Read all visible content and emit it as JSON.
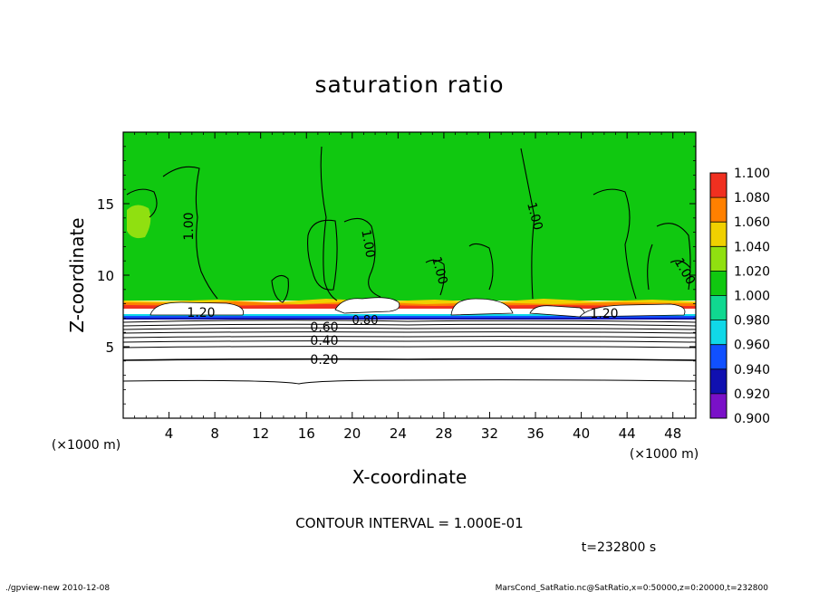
{
  "chart_data": {
    "type": "heatmap",
    "title": "saturation ratio",
    "xlabel": "X-coordinate",
    "ylabel": "Z-coordinate",
    "x_unit": "(×1000 m)",
    "z_unit": "(×1000 m)",
    "xlim": [
      0,
      50
    ],
    "ylim": [
      0,
      20
    ],
    "x_ticks": [
      4,
      8,
      12,
      16,
      20,
      24,
      28,
      32,
      36,
      40,
      44,
      48
    ],
    "y_ticks": [
      5,
      10,
      15
    ],
    "colorbar": {
      "levels": [
        0.9,
        0.92,
        0.94,
        0.96,
        0.98,
        1.0,
        1.02,
        1.04,
        1.06,
        1.08,
        1.1
      ],
      "labels": [
        "0.900",
        "0.920",
        "0.940",
        "0.960",
        "0.980",
        "1.000",
        "1.020",
        "1.040",
        "1.060",
        "1.080",
        "1.100"
      ],
      "colors": [
        "#7a10c8",
        "#1010b0",
        "#1050ff",
        "#10d8e8",
        "#10d890",
        "#10c810",
        "#90e010",
        "#f0d000",
        "#ff8000",
        "#f03020",
        "#ff9090"
      ]
    },
    "contour_labels": [
      "1.00",
      "1.00",
      "1.00",
      "1.00",
      "1.00",
      "1.20",
      "1.20",
      "0.80",
      "0.60",
      "0.40",
      "0.20"
    ],
    "contour_interval_text": "CONTOUR INTERVAL = 1.000E-01",
    "time_text": "t=232800 s"
  },
  "footer": {
    "left": "./gpview-new   2010-12-08",
    "right": "MarsCond_SatRatio.nc@SatRatio,x=0:50000,z=0:20000,t=232800"
  },
  "colors": {
    "field": "#10c810",
    "contour": "#000000"
  }
}
